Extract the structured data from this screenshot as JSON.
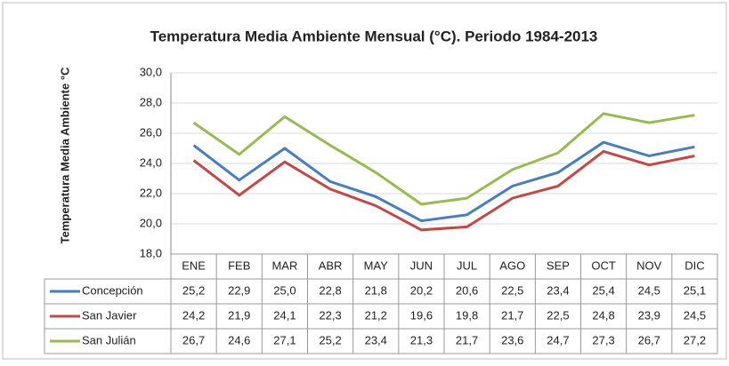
{
  "chart_data": {
    "type": "line",
    "title": "Temperatura Media Ambiente Mensual (°C). Periodo 1984-2013",
    "y_label": "Temperatura Media Ambiente °C",
    "categories": [
      "ENE",
      "FEB",
      "MAR",
      "ABR",
      "MAY",
      "JUN",
      "JUL",
      "AGO",
      "SEP",
      "OCT",
      "NOV",
      "DIC"
    ],
    "series": [
      {
        "name": "Concepción",
        "color": "#4a7ebb",
        "values": [
          25.2,
          22.9,
          25.0,
          22.8,
          21.8,
          20.2,
          20.6,
          22.5,
          23.4,
          25.4,
          24.5,
          25.1
        ],
        "value_labels": [
          "25,2",
          "22,9",
          "25,0",
          "22,8",
          "21,8",
          "20,2",
          "20,6",
          "22,5",
          "23,4",
          "25,4",
          "24,5",
          "25,1"
        ]
      },
      {
        "name": "San Javier",
        "color": "#be4b48",
        "values": [
          24.2,
          21.9,
          24.1,
          22.3,
          21.2,
          19.6,
          19.8,
          21.7,
          22.5,
          24.8,
          23.9,
          24.5
        ],
        "value_labels": [
          "24,2",
          "21,9",
          "24,1",
          "22,3",
          "21,2",
          "19,6",
          "19,8",
          "21,7",
          "22,5",
          "24,8",
          "23,9",
          "24,5"
        ]
      },
      {
        "name": "San Julián",
        "color": "#98b954",
        "values": [
          26.7,
          24.6,
          27.1,
          25.2,
          23.4,
          21.3,
          21.7,
          23.6,
          24.7,
          27.3,
          26.7,
          27.2
        ],
        "value_labels": [
          "26,7",
          "24,6",
          "27,1",
          "25,2",
          "23,4",
          "21,3",
          "21,7",
          "23,6",
          "24,7",
          "27,3",
          "26,7",
          "27,2"
        ]
      }
    ],
    "ylim": [
      18,
      30
    ],
    "yticks": [
      {
        "value": 18,
        "label": "18,0"
      },
      {
        "value": 20,
        "label": "20,0"
      },
      {
        "value": 22,
        "label": "22,0"
      },
      {
        "value": 24,
        "label": "24,0"
      },
      {
        "value": 26,
        "label": "26,0"
      },
      {
        "value": 28,
        "label": "28,0"
      },
      {
        "value": 30,
        "label": "30,0"
      }
    ],
    "grid": true
  }
}
